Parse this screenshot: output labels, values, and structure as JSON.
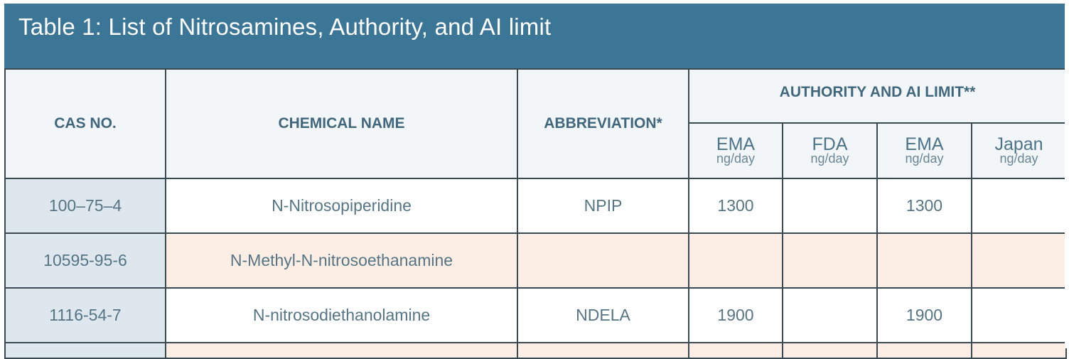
{
  "title": "Table 1: List of Nitrosamines, Authority, and AI limit",
  "headers": {
    "cas": "CAS NO.",
    "chemical_name": "CHEMICAL NAME",
    "abbreviation": "ABBREVIATION*",
    "authority_group": "AUTHORITY AND AI LIMIT**",
    "authorities": [
      {
        "name": "EMA",
        "unit": "ng/day"
      },
      {
        "name": "FDA",
        "unit": "ng/day"
      },
      {
        "name": "EMA",
        "unit": "ng/day"
      },
      {
        "name": "Japan",
        "unit": "ng/day"
      }
    ]
  },
  "rows": [
    {
      "cas": "100–75–4",
      "name": "N-Nitrosopiperidine",
      "abbr": "NPIP",
      "limits": [
        "1300",
        "",
        "1300",
        ""
      ]
    },
    {
      "cas": "10595-95-6",
      "name": "N-Methyl-N-nitrosoethanamine",
      "abbr": "",
      "limits": [
        "",
        "",
        "",
        ""
      ]
    },
    {
      "cas": "1116-54-7",
      "name": "N-nitrosodiethanolamine",
      "abbr": "NDELA",
      "limits": [
        "1900",
        "",
        "1900",
        ""
      ]
    }
  ],
  "colors": {
    "title_bar": "#3b7696",
    "highlight_row": "#fdeee5",
    "cas_column": "#dfe7ee",
    "header_bg": "#f2f6f9"
  }
}
